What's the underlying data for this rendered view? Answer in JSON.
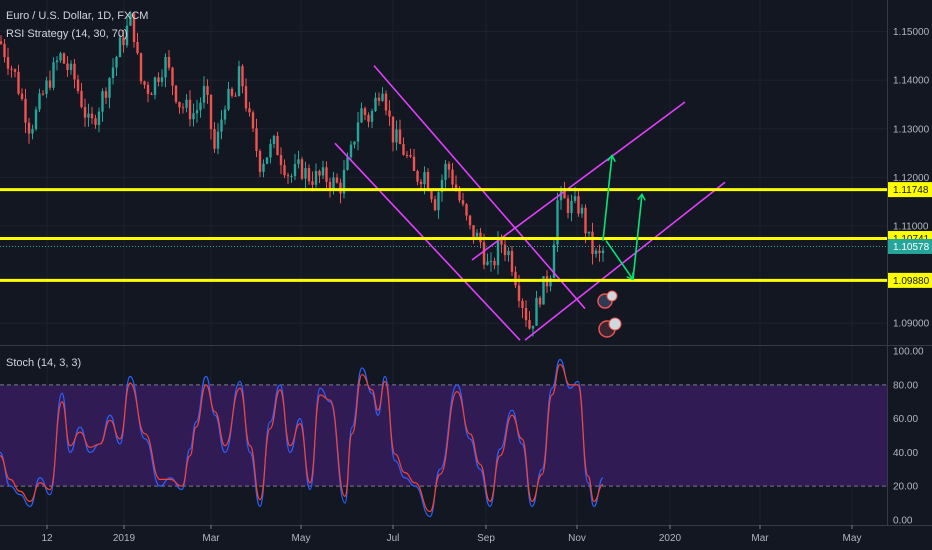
{
  "header": {
    "symbol": "Euro / U.S. Dollar, 1D, FXCM",
    "strategy": "RSI Strategy (14, 30, 70)",
    "stoch": "Stoch (14, 3, 3)"
  },
  "colors": {
    "background": "#131722",
    "candle_up": "#26a69a",
    "candle_down": "#ef5350",
    "horizontal_level": "#ffff00",
    "trend_channel": "#e040fb",
    "arrow": "#00e676",
    "stoch_k": "#2962ff",
    "stoch_d": "#f44336",
    "stoch_band": "#311b55"
  },
  "chart_data": [
    {
      "type": "candlestick",
      "symbol": "EURUSD",
      "timeframe": "1D",
      "x_ticks": [
        "12",
        "2019",
        "Mar",
        "May",
        "Jul",
        "Sep",
        "Nov",
        "2020",
        "Mar",
        "May"
      ],
      "y_ticks": [
        "1.15000",
        "1.14000",
        "1.13000",
        "1.12000",
        "1.11000",
        "1.09000"
      ],
      "ylim": [
        1.0855,
        1.1565
      ],
      "levels": [
        {
          "label": "1.11748",
          "value": 1.11748
        },
        {
          "label": "1.10741",
          "value": 1.10741
        },
        {
          "label": "1.09880",
          "value": 1.0988
        }
      ],
      "last_price": {
        "label": "1.10578",
        "value": 1.10578
      },
      "path": [
        [
          0,
          1.148
        ],
        [
          15,
          1.141
        ],
        [
          30,
          1.13
        ],
        [
          45,
          1.138
        ],
        [
          60,
          1.145
        ],
        [
          75,
          1.14
        ],
        [
          90,
          1.13
        ],
        [
          105,
          1.138
        ],
        [
          120,
          1.147
        ],
        [
          132,
          1.153
        ],
        [
          140,
          1.14
        ],
        [
          150,
          1.138
        ],
        [
          165,
          1.144
        ],
        [
          180,
          1.135
        ],
        [
          195,
          1.133
        ],
        [
          205,
          1.138
        ],
        [
          215,
          1.125
        ],
        [
          225,
          1.136
        ],
        [
          235,
          1.136
        ],
        [
          240,
          1.142
        ],
        [
          250,
          1.131
        ],
        [
          260,
          1.123
        ],
        [
          275,
          1.127
        ],
        [
          290,
          1.12
        ],
        [
          300,
          1.122
        ],
        [
          310,
          1.12
        ],
        [
          325,
          1.12
        ],
        [
          340,
          1.118
        ],
        [
          350,
          1.124
        ],
        [
          360,
          1.134
        ],
        [
          370,
          1.132
        ],
        [
          382,
          1.14
        ],
        [
          392,
          1.129
        ],
        [
          405,
          1.125
        ],
        [
          415,
          1.12
        ],
        [
          425,
          1.121
        ],
        [
          435,
          1.115
        ],
        [
          447,
          1.123
        ],
        [
          460,
          1.115
        ],
        [
          470,
          1.109
        ],
        [
          480,
          1.107
        ],
        [
          490,
          1.1
        ],
        [
          500,
          1.107
        ],
        [
          510,
          1.104
        ],
        [
          520,
          1.096
        ],
        [
          530,
          1.089
        ],
        [
          540,
          1.096
        ],
        [
          550,
          1.1
        ],
        [
          558,
          1.116
        ],
        [
          570,
          1.114
        ],
        [
          580,
          1.114
        ],
        [
          590,
          1.106
        ],
        [
          598,
          1.103
        ],
        [
          604,
          1.105
        ]
      ],
      "channels": [
        {
          "name": "",
          "points": [
            [
              374,
              1.143
            ],
            [
              585,
              1.093
            ]
          ]
        },
        {
          "name": "",
          "points": [
            [
              335,
              1.127
            ],
            [
              520,
              1.0865
            ]
          ]
        },
        {
          "name": "",
          "points": [
            [
              472,
              1.103
            ],
            [
              685,
              1.1355
            ]
          ]
        },
        {
          "name": "",
          "points": [
            [
              525,
              1.0865
            ],
            [
              725,
              1.119
            ]
          ]
        }
      ],
      "arrows": [
        {
          "points": [
            [
              603,
              1.107
            ],
            [
              612,
              1.1245
            ]
          ]
        },
        {
          "points": [
            [
              606,
              1.107
            ],
            [
              633,
              1.099
            ]
          ]
        },
        {
          "points": [
            [
              633,
              1.099
            ],
            [
              642,
              1.1165
            ]
          ]
        }
      ]
    },
    {
      "type": "line",
      "name": "Stoch (14, 3, 3)",
      "y_ticks": [
        "100.00",
        "80.00",
        "60.00",
        "40.00",
        "20.00",
        "0.00"
      ],
      "ylim": [
        -3,
        103
      ],
      "band": [
        20,
        80
      ],
      "series": [
        {
          "name": "",
          "points": [
            [
              0,
              40
            ],
            [
              10,
              20
            ],
            [
              20,
              15
            ],
            [
              30,
              8
            ],
            [
              40,
              25
            ],
            [
              50,
              15
            ],
            [
              62,
              75
            ],
            [
              70,
              40
            ],
            [
              80,
              55
            ],
            [
              90,
              40
            ],
            [
              100,
              45
            ],
            [
              110,
              62
            ],
            [
              120,
              45
            ],
            [
              130,
              85
            ],
            [
              145,
              48
            ],
            [
              160,
              20
            ],
            [
              170,
              25
            ],
            [
              182,
              18
            ],
            [
              190,
              42
            ],
            [
              196,
              58
            ],
            [
              206,
              85
            ],
            [
              215,
              62
            ],
            [
              225,
              40
            ],
            [
              240,
              82
            ],
            [
              250,
              40
            ],
            [
              260,
              8
            ],
            [
              270,
              58
            ],
            [
              280,
              80
            ],
            [
              290,
              40
            ],
            [
              300,
              60
            ],
            [
              310,
              18
            ],
            [
              320,
              78
            ],
            [
              330,
              70
            ],
            [
              345,
              10
            ],
            [
              352,
              55
            ],
            [
              362,
              90
            ],
            [
              372,
              75
            ],
            [
              378,
              62
            ],
            [
              385,
              85
            ],
            [
              395,
              35
            ],
            [
              405,
              25
            ],
            [
              415,
              20
            ],
            [
              430,
              2
            ],
            [
              440,
              30
            ],
            [
              457,
              80
            ],
            [
              470,
              48
            ],
            [
              480,
              30
            ],
            [
              490,
              8
            ],
            [
              500,
              42
            ],
            [
              512,
              65
            ],
            [
              522,
              45
            ],
            [
              532,
              8
            ],
            [
              542,
              30
            ],
            [
              552,
              78
            ],
            [
              560,
              95
            ],
            [
              570,
              78
            ],
            [
              578,
              82
            ],
            [
              588,
              22
            ],
            [
              594,
              8
            ],
            [
              603,
              25
            ]
          ]
        },
        {
          "name": "",
          "points": [
            [
              0,
              38
            ],
            [
              10,
              24
            ],
            [
              20,
              17
            ],
            [
              30,
              11
            ],
            [
              40,
              22
            ],
            [
              50,
              18
            ],
            [
              62,
              70
            ],
            [
              70,
              44
            ],
            [
              80,
              52
            ],
            [
              90,
              43
            ],
            [
              100,
              45
            ],
            [
              110,
              59
            ],
            [
              120,
              48
            ],
            [
              130,
              81
            ],
            [
              145,
              51
            ],
            [
              160,
              24
            ],
            [
              170,
              24
            ],
            [
              182,
              20
            ],
            [
              190,
              38
            ],
            [
              196,
              55
            ],
            [
              206,
              80
            ],
            [
              215,
              64
            ],
            [
              225,
              44
            ],
            [
              240,
              78
            ],
            [
              250,
              44
            ],
            [
              260,
              12
            ],
            [
              270,
              54
            ],
            [
              280,
              77
            ],
            [
              290,
              44
            ],
            [
              300,
              57
            ],
            [
              310,
              22
            ],
            [
              320,
              74
            ],
            [
              330,
              71
            ],
            [
              345,
              14
            ],
            [
              352,
              51
            ],
            [
              362,
              86
            ],
            [
              372,
              77
            ],
            [
              378,
              65
            ],
            [
              385,
              82
            ],
            [
              395,
              39
            ],
            [
              405,
              28
            ],
            [
              415,
              22
            ],
            [
              430,
              5
            ],
            [
              440,
              27
            ],
            [
              457,
              76
            ],
            [
              470,
              51
            ],
            [
              480,
              33
            ],
            [
              490,
              11
            ],
            [
              500,
              38
            ],
            [
              512,
              62
            ],
            [
              522,
              48
            ],
            [
              532,
              11
            ],
            [
              542,
              27
            ],
            [
              552,
              74
            ],
            [
              560,
              92
            ],
            [
              570,
              80
            ],
            [
              578,
              80
            ],
            [
              588,
              26
            ],
            [
              594,
              11
            ],
            [
              603,
              21
            ]
          ]
        }
      ]
    }
  ]
}
